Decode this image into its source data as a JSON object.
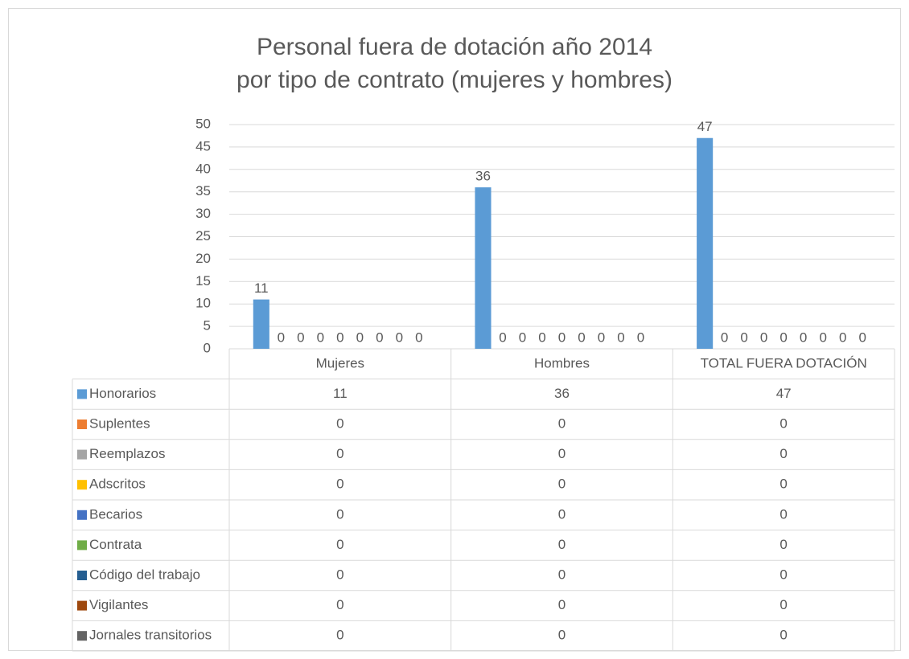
{
  "chart_data": {
    "type": "bar",
    "title": [
      "Personal fuera de dotación año 2014",
      "por tipo de contrato (mujeres y hombres)"
    ],
    "categories": [
      "Mujeres",
      "Hombres",
      "TOTAL FUERA DOTACIÓN"
    ],
    "series": [
      {
        "name": "Honorarios",
        "color": "#5b9bd5",
        "values": [
          11,
          36,
          47
        ]
      },
      {
        "name": "Suplentes",
        "color": "#ed7d31",
        "values": [
          0,
          0,
          0
        ]
      },
      {
        "name": "Reemplazos",
        "color": "#a5a5a5",
        "values": [
          0,
          0,
          0
        ]
      },
      {
        "name": "Adscritos",
        "color": "#ffc000",
        "values": [
          0,
          0,
          0
        ]
      },
      {
        "name": "Becarios",
        "color": "#4472c4",
        "values": [
          0,
          0,
          0
        ]
      },
      {
        "name": "Contrata",
        "color": "#70ad47",
        "values": [
          0,
          0,
          0
        ]
      },
      {
        "name": "Código del trabajo",
        "color": "#255e91",
        "values": [
          0,
          0,
          0
        ]
      },
      {
        "name": "Vigilantes",
        "color": "#9e480e",
        "values": [
          0,
          0,
          0
        ]
      },
      {
        "name": "Jornales transitorios",
        "color": "#636363",
        "values": [
          0,
          0,
          0
        ]
      }
    ],
    "ylim": [
      0,
      50
    ],
    "yticks": [
      0,
      5,
      10,
      15,
      20,
      25,
      30,
      35,
      40,
      45,
      50
    ],
    "grid": true
  }
}
